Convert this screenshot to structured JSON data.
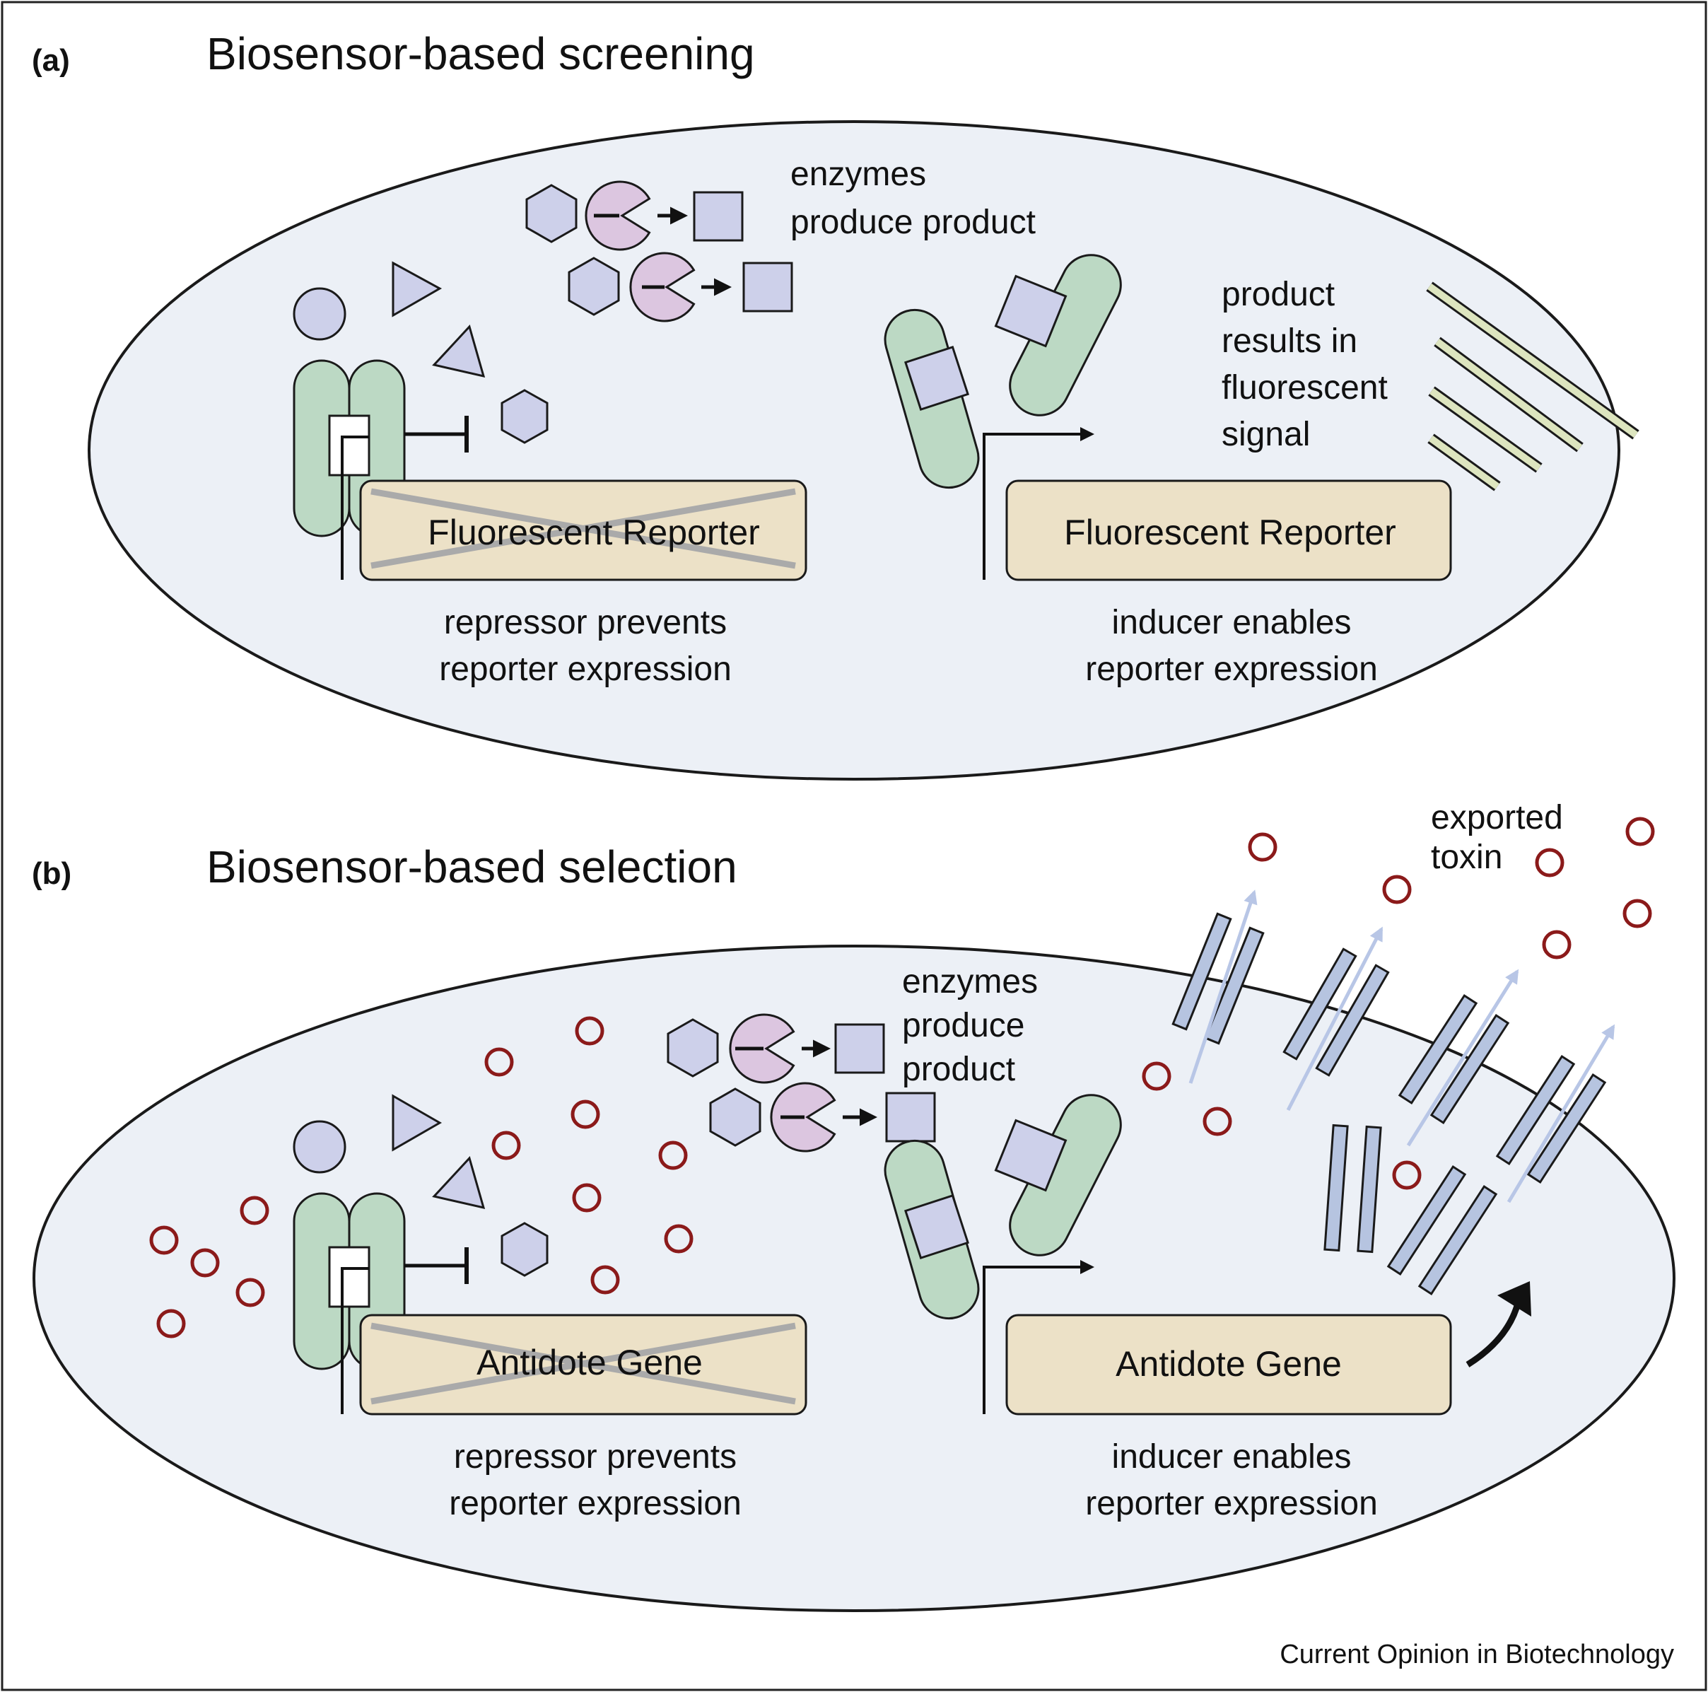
{
  "colors": {
    "cell_fill": "#ecf0f6",
    "outline": "#1a1a1a",
    "protein_green": "#bcd9c4",
    "substrate_lavender": "#cdd0ea",
    "enzyme_pink": "#dcc6e0",
    "gene_tan": "#ece1c7",
    "signal_bar": "#dde5bf",
    "toxin_red": "#8b1a1a",
    "transporter_blue": "#b6c4e0",
    "export_arrow": "#b8c6e6",
    "cross_gray": "#aaaaaa"
  },
  "credit": "Current Opinion in Biotechnology",
  "panel_a": {
    "label": "(a)",
    "title": "Biosensor-based screening",
    "enzymes_label": [
      "enzymes",
      "produce product"
    ],
    "repressed_gene": "Fluorescent Reporter",
    "active_gene": "Fluorescent Reporter",
    "repressor_caption": [
      "repressor prevents",
      "reporter expression"
    ],
    "inducer_caption": [
      "inducer enables",
      "reporter expression"
    ],
    "signal_label": [
      "product",
      "results in",
      "fluorescent",
      "signal"
    ]
  },
  "panel_b": {
    "label": "(b)",
    "title": "Biosensor-based selection",
    "enzymes_label": [
      "enzymes",
      "produce",
      "product"
    ],
    "repressed_gene": "Antidote Gene",
    "active_gene": "Antidote Gene",
    "repressor_caption": [
      "repressor prevents",
      "reporter expression"
    ],
    "inducer_caption": [
      "inducer enables",
      "reporter expression"
    ],
    "toxin_label": [
      "exported",
      "toxin"
    ]
  }
}
